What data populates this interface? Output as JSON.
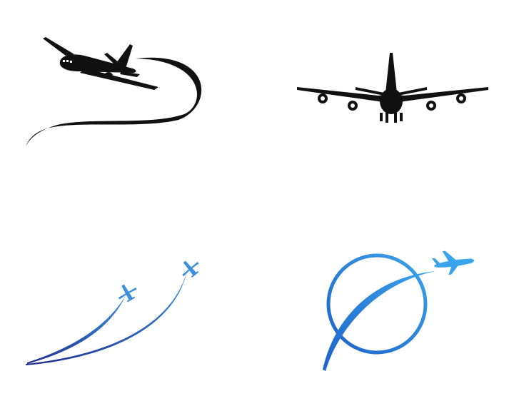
{
  "logos": [
    {
      "id": "black-airplane-swoosh",
      "icon": "airplane-takeoff-swoosh-icon",
      "color": "#111111"
    },
    {
      "id": "black-airplane-front",
      "icon": "airplane-front-view-icon",
      "color": "#111111"
    },
    {
      "id": "blue-two-airplanes-trails",
      "icon": "two-airplanes-trails-icon",
      "colors": [
        "#1f2f8f",
        "#3a8fe0"
      ]
    },
    {
      "id": "blue-globe-airplane",
      "icon": "globe-airplane-orbit-icon",
      "colors": [
        "#1e62c8",
        "#3aa4ec"
      ]
    }
  ]
}
